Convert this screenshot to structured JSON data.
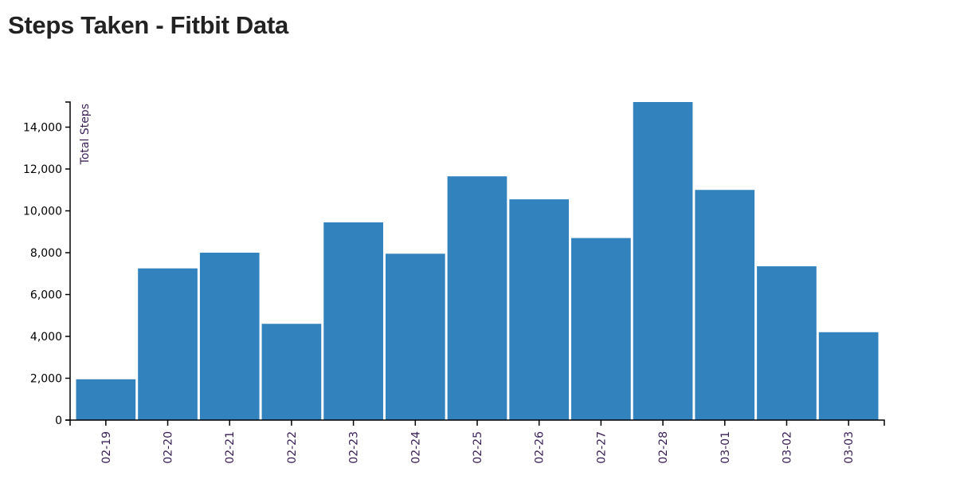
{
  "chart_data": {
    "type": "bar",
    "title": "Steps Taken - Fitbit Data",
    "xlabel": "",
    "ylabel": "Total Steps",
    "categories": [
      "02-19",
      "02-20",
      "02-21",
      "02-22",
      "02-23",
      "02-24",
      "02-25",
      "02-26",
      "02-27",
      "02-28",
      "03-01",
      "03-02",
      "03-03"
    ],
    "values": [
      1950,
      7250,
      8000,
      4600,
      9450,
      7950,
      11650,
      10550,
      8700,
      15200,
      11000,
      7350,
      4200
    ],
    "ylim": [
      0,
      15200
    ],
    "yticks": [
      0,
      2000,
      4000,
      6000,
      8000,
      10000,
      12000,
      14000
    ],
    "ytick_labels": [
      "0",
      "2,000",
      "4,000",
      "6,000",
      "8,000",
      "10,000",
      "12,000",
      "14,000"
    ],
    "grid": false,
    "colors": {
      "bar": "#3182bd"
    }
  }
}
